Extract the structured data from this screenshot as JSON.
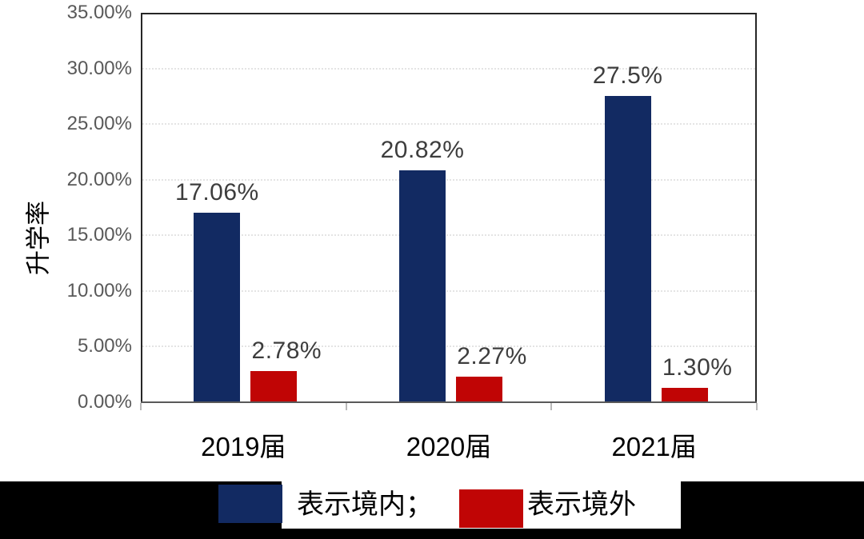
{
  "chart_data": {
    "type": "bar",
    "title": "",
    "y_axis_title": "升学率",
    "categories": [
      "2019届",
      "2020届",
      "2021届"
    ],
    "series": [
      {
        "name": "表示境内",
        "key": "domestic",
        "color": "#122a62",
        "values": [
          17.06,
          20.82,
          27.5
        ],
        "labels": [
          "17.06%",
          "20.82%",
          "27.5%"
        ]
      },
      {
        "name": "表示境外",
        "key": "overseas",
        "color": "#c00505",
        "values": [
          2.78,
          2.27,
          1.3
        ],
        "labels": [
          "2.78%",
          "2.27%",
          "1.30%"
        ]
      }
    ],
    "y_ticks": [
      {
        "value": 35,
        "label": "35.00%"
      },
      {
        "value": 30,
        "label": "30.00%"
      },
      {
        "value": 25,
        "label": "25.00%"
      },
      {
        "value": 20,
        "label": "20.00%"
      },
      {
        "value": 15,
        "label": "15.00%"
      },
      {
        "value": 10,
        "label": "10.00%"
      },
      {
        "value": 5,
        "label": "5.00%"
      },
      {
        "value": 0,
        "label": "0.00%"
      }
    ],
    "ylim": [
      0,
      35
    ],
    "grid": true,
    "legend_position": "bottom"
  },
  "legend": {
    "domestic_label": "表示境内；",
    "overseas_label": "表示境外"
  },
  "colors": {
    "bar_domestic": "#122a62",
    "bar_overseas": "#c00505",
    "gridline": "#e4e4e4",
    "plot_border": "#262626",
    "axis_line": "#595959",
    "tick_label": "#595959",
    "data_label": "#3d3d3d",
    "legend_band": "#000000"
  }
}
